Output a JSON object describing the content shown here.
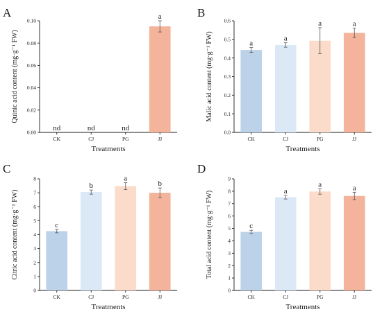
{
  "chart_data": [
    {
      "type": "bar",
      "panel": "A",
      "categories": [
        "CK",
        "CJ",
        "PG",
        "JJ"
      ],
      "values": [
        0,
        0,
        0,
        0.095
      ],
      "errors": [
        0,
        0,
        0,
        0.005
      ],
      "letters": [
        "nd",
        "nd",
        "nd",
        "a"
      ],
      "xlabel": "Treatments",
      "ylabel": "Quinic acid content (mg·g⁻¹ FW)",
      "ylim": [
        0,
        0.1
      ],
      "yticks": [
        "0.00",
        "0.02",
        "0.04",
        "0.06",
        "0.08",
        "0.10"
      ]
    },
    {
      "type": "bar",
      "panel": "B",
      "categories": [
        "CK",
        "CJ",
        "PG",
        "JJ"
      ],
      "values": [
        0.443,
        0.47,
        0.493,
        0.535
      ],
      "errors": [
        0.013,
        0.012,
        0.07,
        0.025
      ],
      "letters": [
        "a",
        "a",
        "a",
        "a"
      ],
      "xlabel": "Treatments",
      "ylabel": "Malic acid content (mg·g⁻¹ FW)",
      "ylim": [
        0,
        0.6
      ],
      "yticks": [
        "0.0",
        "0.1",
        "0.2",
        "0.3",
        "0.4",
        "0.5",
        "0.6"
      ]
    },
    {
      "type": "bar",
      "panel": "C",
      "categories": [
        "CK",
        "CJ",
        "PG",
        "JJ"
      ],
      "values": [
        4.25,
        7.05,
        7.48,
        7.0
      ],
      "errors": [
        0.12,
        0.15,
        0.25,
        0.35
      ],
      "letters": [
        "c",
        "b",
        "a",
        "b"
      ],
      "xlabel": "Treatments",
      "ylabel": "Citric acid content (mg·g⁻¹ FW)",
      "ylim": [
        0,
        8
      ],
      "yticks": [
        "0",
        "1",
        "2",
        "3",
        "4",
        "5",
        "6",
        "7",
        "8"
      ]
    },
    {
      "type": "bar",
      "panel": "D",
      "categories": [
        "CK",
        "CJ",
        "PG",
        "JJ"
      ],
      "values": [
        4.72,
        7.52,
        7.98,
        7.62
      ],
      "errors": [
        0.13,
        0.15,
        0.22,
        0.3
      ],
      "letters": [
        "c",
        "a",
        "a",
        "a"
      ],
      "xlabel": "Treatments",
      "ylabel": "Total acid content (mg·g⁻¹ FW)",
      "ylim": [
        0,
        9
      ],
      "yticks": [
        "0",
        "1",
        "2",
        "3",
        "4",
        "5",
        "6",
        "7",
        "8",
        "9"
      ]
    }
  ],
  "colors": [
    "#bcd2e8",
    "#dbe8f6",
    "#fbdccb",
    "#f4b39b"
  ],
  "panels": [
    {
      "label": "A"
    },
    {
      "label": "B"
    },
    {
      "label": "C"
    },
    {
      "label": "D"
    }
  ]
}
